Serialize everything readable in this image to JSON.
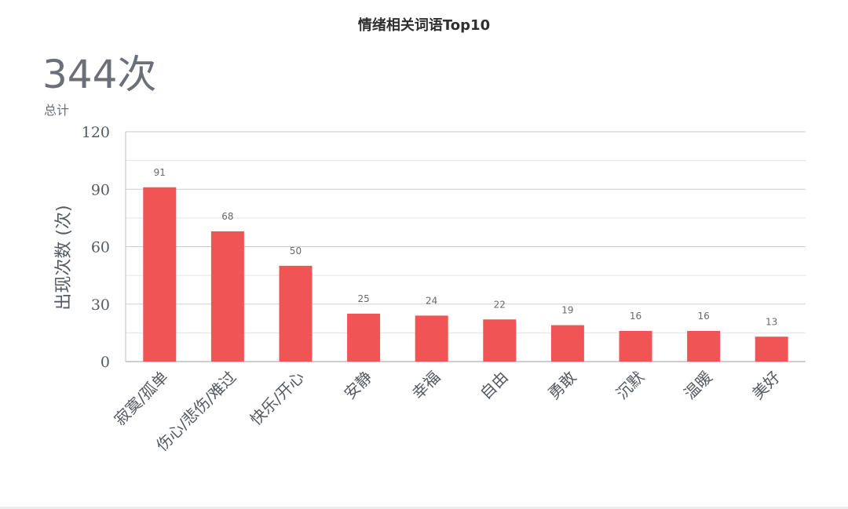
{
  "summary": {
    "total_value": "344次",
    "total_label": "总计"
  },
  "chart_data": {
    "type": "bar",
    "title": "情绪相关词语Top10",
    "xlabel": "",
    "ylabel": "出现次数 (次)",
    "categories": [
      "寂寞/孤单",
      "伤心/悲伤/难过",
      "快乐/开心",
      "安静",
      "幸福",
      "自由",
      "勇敢",
      "沉默",
      "温暖",
      "美好"
    ],
    "values": [
      91,
      68,
      50,
      25,
      24,
      22,
      19,
      16,
      16,
      13
    ],
    "data_labels": [
      "91",
      "68",
      "50",
      "25",
      "24",
      "22",
      "19",
      "16",
      "16",
      "13"
    ],
    "ylim": [
      0,
      120
    ],
    "yticks": [
      0,
      30,
      60,
      90,
      120
    ],
    "ytick_labels": [
      "0",
      "30",
      "60",
      "90",
      "120"
    ],
    "minor_gridlines": [
      15,
      45,
      75,
      105
    ],
    "grid": true,
    "legend": "none",
    "bar_color": "#f05455"
  }
}
